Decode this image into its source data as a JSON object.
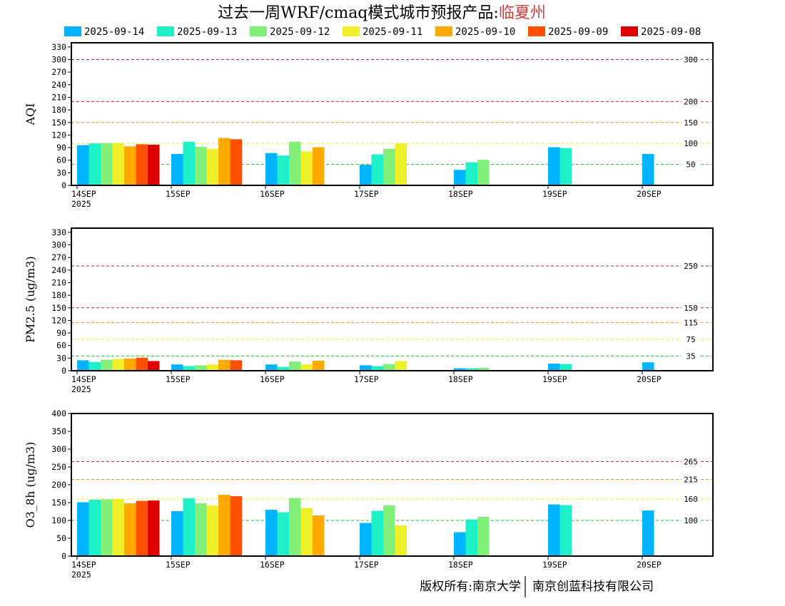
{
  "title": {
    "main": "过去一周WRF/cmaq模式城市预报产品:",
    "city": "临夏州",
    "city_color": "#d23c3c"
  },
  "legend": [
    {
      "label": "2025-09-14",
      "color": "#00b4ff"
    },
    {
      "label": "2025-09-13",
      "color": "#1ef0c8"
    },
    {
      "label": "2025-09-12",
      "color": "#82f078"
    },
    {
      "label": "2025-09-11",
      "color": "#f0f028"
    },
    {
      "label": "2025-09-10",
      "color": "#ffaa00"
    },
    {
      "label": "2025-09-09",
      "color": "#ff5000"
    },
    {
      "label": "2025-09-08",
      "color": "#dc0000"
    }
  ],
  "footer": {
    "left": "版权所有:南京大学",
    "right": "南京创蓝科技有限公司"
  },
  "chart_data": [
    {
      "type": "bar",
      "ylabel": "AQI",
      "categories": [
        "14SEP\n2025",
        "15SEP",
        "16SEP",
        "17SEP",
        "18SEP",
        "19SEP",
        "20SEP"
      ],
      "ylim": [
        0,
        340
      ],
      "yticks": [
        0,
        30,
        60,
        90,
        120,
        150,
        180,
        210,
        240,
        270,
        300,
        330
      ],
      "reference_lines": [
        {
          "value": 300,
          "label": "300",
          "color": "#b4145a"
        },
        {
          "value": 200,
          "label": "200",
          "color": "#e61e1e"
        },
        {
          "value": 150,
          "label": "150",
          "color": "#f08c1e"
        },
        {
          "value": 100,
          "label": "100",
          "color": "#f0e61e"
        },
        {
          "value": 50,
          "label": "50",
          "color": "#1ec81e"
        }
      ],
      "series": [
        {
          "name": "2025-09-14",
          "values": [
            96,
            75,
            77,
            49,
            37,
            91,
            75
          ]
        },
        {
          "name": "2025-09-13",
          "values": [
            100,
            104,
            71,
            74,
            55,
            89,
            null
          ]
        },
        {
          "name": "2025-09-12",
          "values": [
            101,
            92,
            104,
            87,
            61,
            null,
            null
          ]
        },
        {
          "name": "2025-09-11",
          "values": [
            101,
            87,
            81,
            100,
            null,
            null,
            null
          ]
        },
        {
          "name": "2025-09-10",
          "values": [
            93,
            113,
            91,
            null,
            null,
            null,
            null
          ]
        },
        {
          "name": "2025-09-09",
          "values": [
            98,
            110,
            null,
            null,
            null,
            null,
            null
          ]
        },
        {
          "name": "2025-09-08",
          "values": [
            97,
            null,
            null,
            null,
            null,
            null,
            null
          ]
        }
      ]
    },
    {
      "type": "bar",
      "ylabel": "PM2.5 (ug/m3)",
      "categories": [
        "14SEP\n2025",
        "15SEP",
        "16SEP",
        "17SEP",
        "18SEP",
        "19SEP",
        "20SEP"
      ],
      "ylim": [
        0,
        340
      ],
      "yticks": [
        0,
        30,
        60,
        90,
        120,
        150,
        180,
        210,
        240,
        270,
        300,
        330
      ],
      "reference_lines": [
        {
          "value": 250,
          "label": "250",
          "color": "#b4145a"
        },
        {
          "value": 150,
          "label": "150",
          "color": "#e61e1e"
        },
        {
          "value": 115,
          "label": "115",
          "color": "#f08c1e"
        },
        {
          "value": 75,
          "label": "75",
          "color": "#f0e61e"
        },
        {
          "value": 35,
          "label": "35",
          "color": "#1ec81e"
        }
      ],
      "series": [
        {
          "name": "2025-09-14",
          "values": [
            25,
            15,
            15,
            13,
            6,
            17,
            20
          ]
        },
        {
          "name": "2025-09-13",
          "values": [
            21,
            11,
            9,
            11,
            6,
            16,
            null
          ]
        },
        {
          "name": "2025-09-12",
          "values": [
            26,
            13,
            22,
            16,
            7,
            null,
            null
          ]
        },
        {
          "name": "2025-09-11",
          "values": [
            28,
            15,
            15,
            23,
            null,
            null,
            null
          ]
        },
        {
          "name": "2025-09-10",
          "values": [
            29,
            26,
            24,
            null,
            null,
            null,
            null
          ]
        },
        {
          "name": "2025-09-09",
          "values": [
            31,
            25,
            null,
            null,
            null,
            null,
            null
          ]
        },
        {
          "name": "2025-09-08",
          "values": [
            23,
            null,
            null,
            null,
            null,
            null,
            null
          ]
        }
      ]
    },
    {
      "type": "bar",
      "ylabel": "O3_8h (ug/m3)",
      "categories": [
        "14SEP\n2025",
        "15SEP",
        "16SEP",
        "17SEP",
        "18SEP",
        "19SEP",
        "20SEP"
      ],
      "ylim": [
        0,
        400
      ],
      "yticks": [
        0,
        50,
        100,
        150,
        200,
        250,
        300,
        350,
        400
      ],
      "reference_lines": [
        {
          "value": 265,
          "label": "265",
          "color": "#e61e1e"
        },
        {
          "value": 215,
          "label": "215",
          "color": "#f08c1e"
        },
        {
          "value": 160,
          "label": "160",
          "color": "#f0e61e"
        },
        {
          "value": 100,
          "label": "100",
          "color": "#1ec81e"
        }
      ],
      "series": [
        {
          "name": "2025-09-14",
          "values": [
            151,
            126,
            130,
            93,
            67,
            145,
            128
          ]
        },
        {
          "name": "2025-09-13",
          "values": [
            158,
            162,
            123,
            127,
            103,
            143,
            null
          ]
        },
        {
          "name": "2025-09-12",
          "values": [
            159,
            148,
            163,
            142,
            110,
            null,
            null
          ]
        },
        {
          "name": "2025-09-11",
          "values": [
            160,
            142,
            135,
            86,
            null,
            null,
            null
          ]
        },
        {
          "name": "2025-09-10",
          "values": [
            148,
            172,
            114,
            null,
            null,
            null,
            null
          ]
        },
        {
          "name": "2025-09-09",
          "values": [
            155,
            168,
            null,
            null,
            null,
            null,
            null
          ]
        },
        {
          "name": "2025-09-08",
          "values": [
            156,
            null,
            null,
            null,
            null,
            null,
            null
          ]
        }
      ]
    }
  ]
}
